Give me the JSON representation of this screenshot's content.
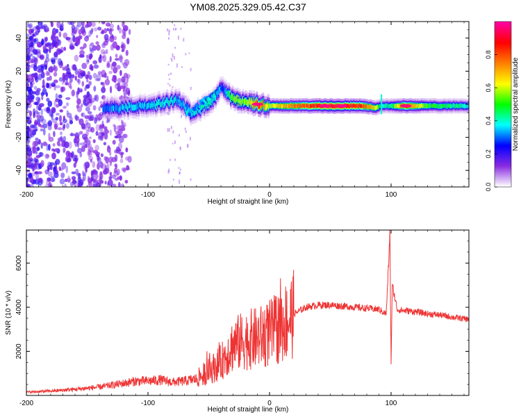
{
  "title": "YM08.2025.329.05.42.C37",
  "chart_data": [
    {
      "type": "heatmap",
      "name": "spectrogram",
      "xlabel": "Height of straight line (km)",
      "ylabel": "Frequency (Hz)",
      "xlim": [
        -200,
        164
      ],
      "ylim": [
        -50,
        50
      ],
      "xticks": [
        -200,
        -100,
        0,
        100
      ],
      "yticks": [
        -40,
        -20,
        0,
        20,
        40
      ],
      "colorbar": {
        "label": "Normalized spectral amplitude",
        "range": [
          0,
          1
        ],
        "ticks": [
          0.0,
          0.2,
          0.4,
          0.6,
          0.8
        ],
        "colormap": [
          "#ffffff",
          "#8a2be2",
          "#0000ff",
          "#00ffff",
          "#00ff00",
          "#ffff00",
          "#ff8000",
          "#ff0000",
          "#ff00a0"
        ]
      },
      "ridge": [
        {
          "x": -137,
          "f": -3,
          "amp": 0.3
        },
        {
          "x": -120,
          "f": -2,
          "amp": 0.35
        },
        {
          "x": -100,
          "f": -1,
          "amp": 0.35
        },
        {
          "x": -85,
          "f": 1,
          "amp": 0.4
        },
        {
          "x": -75,
          "f": 3,
          "amp": 0.35
        },
        {
          "x": -65,
          "f": -5,
          "amp": 0.35
        },
        {
          "x": -55,
          "f": -2,
          "amp": 0.4
        },
        {
          "x": -45,
          "f": 3,
          "amp": 0.4
        },
        {
          "x": -40,
          "f": 10,
          "amp": 0.25
        },
        {
          "x": -30,
          "f": 3,
          "amp": 0.55
        },
        {
          "x": -18,
          "f": 1,
          "amp": 0.55
        },
        {
          "x": -10,
          "f": 0,
          "amp": 0.85
        },
        {
          "x": 0,
          "f": -1,
          "amp": 0.6
        },
        {
          "x": 20,
          "f": -1,
          "amp": 0.75
        },
        {
          "x": 50,
          "f": -1,
          "amp": 0.95
        },
        {
          "x": 75,
          "f": -1,
          "amp": 0.85
        },
        {
          "x": 88,
          "f": -2,
          "amp": 0.6
        },
        {
          "x": 92,
          "f": -1,
          "amp": 0.4
        },
        {
          "x": 100,
          "f": -1,
          "amp": 0.45
        },
        {
          "x": 112,
          "f": -1,
          "amp": 0.85
        },
        {
          "x": 130,
          "f": -1,
          "amp": 0.5
        },
        {
          "x": 164,
          "f": -1,
          "amp": 0.4
        }
      ]
    },
    {
      "type": "line",
      "name": "snr",
      "xlabel": "Height of straight line (km)",
      "ylabel": "SNR (10 * v/v)",
      "xlim": [
        -200,
        164
      ],
      "ylim": [
        0,
        7500
      ],
      "xticks": [
        -200,
        -100,
        0,
        100
      ],
      "yticks": [
        2000,
        4000,
        6000
      ],
      "color": "#ee3333",
      "series": [
        {
          "name": "SNR",
          "x": [
            -200,
            -180,
            -160,
            -140,
            -120,
            -110,
            -100,
            -90,
            -80,
            -70,
            -60,
            -50,
            -40,
            -30,
            -20,
            -10,
            0,
            10,
            20,
            30,
            40,
            50,
            60,
            70,
            80,
            90,
            96,
            98,
            99,
            100,
            101,
            105,
            110,
            120,
            130,
            140,
            150,
            164
          ],
          "y": [
            150,
            200,
            280,
            380,
            550,
            650,
            650,
            700,
            600,
            650,
            750,
            1100,
            1500,
            2300,
            2500,
            2600,
            2800,
            3200,
            3700,
            4000,
            4100,
            4100,
            4050,
            4000,
            3950,
            3900,
            3700,
            6000,
            7400,
            1400,
            5000,
            3900,
            3850,
            3800,
            3700,
            3650,
            3550,
            3450
          ]
        }
      ]
    }
  ]
}
